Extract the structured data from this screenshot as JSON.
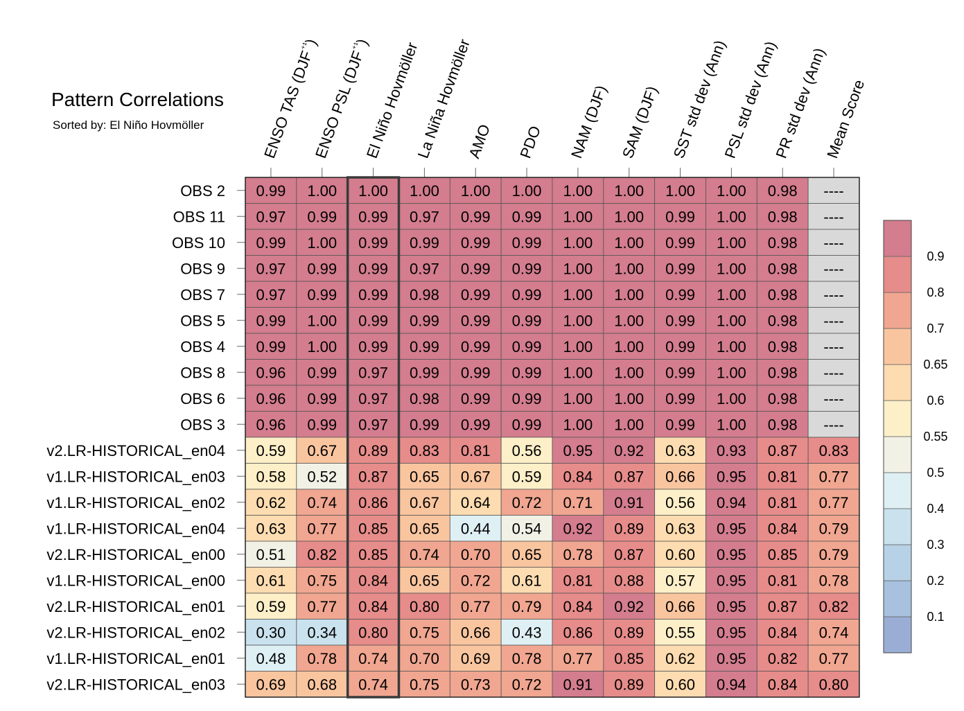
{
  "chart_data": {
    "type": "heatmap",
    "title": "Pattern Correlations",
    "subtitle": "Sorted by: El Niño Hovmöller",
    "highlighted_column": "El Niño Hovmöller",
    "columns": [
      "ENSO TAS (DJF⁺¹)",
      "ENSO PSL (DJF⁺¹)",
      "El Niño Hovmöller",
      "La Niña Hovmöller",
      "AMO",
      "PDO",
      "NAM (DJF)",
      "SAM (DJF)",
      "SST std dev (Ann)",
      "PSL std dev (Ann)",
      "PR std dev (Ann)",
      "Mean Score"
    ],
    "rows": [
      "OBS 2",
      "OBS 11",
      "OBS 10",
      "OBS 9",
      "OBS 7",
      "OBS 5",
      "OBS 4",
      "OBS 8",
      "OBS 6",
      "OBS 3",
      "v2.LR-HISTORICAL_en04",
      "v1.LR-HISTORICAL_en03",
      "v1.LR-HISTORICAL_en02",
      "v1.LR-HISTORICAL_en04",
      "v2.LR-HISTORICAL_en00",
      "v1.LR-HISTORICAL_en00",
      "v2.LR-HISTORICAL_en01",
      "v2.LR-HISTORICAL_en02",
      "v1.LR-HISTORICAL_en01",
      "v2.LR-HISTORICAL_en03"
    ],
    "values": [
      [
        "0.99",
        "1.00",
        "1.00",
        "1.00",
        "1.00",
        "1.00",
        "1.00",
        "1.00",
        "1.00",
        "1.00",
        "0.98",
        "----"
      ],
      [
        "0.97",
        "0.99",
        "0.99",
        "0.97",
        "0.99",
        "0.99",
        "1.00",
        "1.00",
        "0.99",
        "1.00",
        "0.98",
        "----"
      ],
      [
        "0.99",
        "1.00",
        "0.99",
        "0.99",
        "0.99",
        "0.99",
        "1.00",
        "1.00",
        "0.99",
        "1.00",
        "0.98",
        "----"
      ],
      [
        "0.97",
        "0.99",
        "0.99",
        "0.97",
        "0.99",
        "0.99",
        "1.00",
        "1.00",
        "0.99",
        "1.00",
        "0.98",
        "----"
      ],
      [
        "0.97",
        "0.99",
        "0.99",
        "0.98",
        "0.99",
        "0.99",
        "1.00",
        "1.00",
        "0.99",
        "1.00",
        "0.98",
        "----"
      ],
      [
        "0.99",
        "1.00",
        "0.99",
        "0.99",
        "0.99",
        "0.99",
        "1.00",
        "1.00",
        "0.99",
        "1.00",
        "0.98",
        "----"
      ],
      [
        "0.99",
        "1.00",
        "0.99",
        "0.99",
        "0.99",
        "0.99",
        "1.00",
        "1.00",
        "0.99",
        "1.00",
        "0.98",
        "----"
      ],
      [
        "0.96",
        "0.99",
        "0.97",
        "0.99",
        "0.99",
        "0.99",
        "1.00",
        "1.00",
        "0.99",
        "1.00",
        "0.98",
        "----"
      ],
      [
        "0.96",
        "0.99",
        "0.97",
        "0.98",
        "0.99",
        "0.99",
        "1.00",
        "1.00",
        "0.99",
        "1.00",
        "0.98",
        "----"
      ],
      [
        "0.96",
        "0.99",
        "0.97",
        "0.99",
        "0.99",
        "0.99",
        "1.00",
        "1.00",
        "0.99",
        "1.00",
        "0.98",
        "----"
      ],
      [
        "0.59",
        "0.67",
        "0.89",
        "0.83",
        "0.81",
        "0.56",
        "0.95",
        "0.92",
        "0.63",
        "0.93",
        "0.87",
        "0.83"
      ],
      [
        "0.58",
        "0.52",
        "0.87",
        "0.65",
        "0.67",
        "0.59",
        "0.84",
        "0.87",
        "0.66",
        "0.95",
        "0.81",
        "0.77"
      ],
      [
        "0.62",
        "0.74",
        "0.86",
        "0.67",
        "0.64",
        "0.72",
        "0.71",
        "0.91",
        "0.56",
        "0.94",
        "0.81",
        "0.77"
      ],
      [
        "0.63",
        "0.77",
        "0.85",
        "0.65",
        "0.44",
        "0.54",
        "0.92",
        "0.89",
        "0.63",
        "0.95",
        "0.84",
        "0.79"
      ],
      [
        "0.51",
        "0.82",
        "0.85",
        "0.74",
        "0.70",
        "0.65",
        "0.78",
        "0.87",
        "0.60",
        "0.95",
        "0.85",
        "0.79"
      ],
      [
        "0.61",
        "0.75",
        "0.84",
        "0.65",
        "0.72",
        "0.61",
        "0.81",
        "0.88",
        "0.57",
        "0.95",
        "0.81",
        "0.78"
      ],
      [
        "0.59",
        "0.77",
        "0.84",
        "0.80",
        "0.77",
        "0.79",
        "0.84",
        "0.92",
        "0.66",
        "0.95",
        "0.87",
        "0.82"
      ],
      [
        "0.30",
        "0.34",
        "0.80",
        "0.75",
        "0.66",
        "0.43",
        "0.86",
        "0.89",
        "0.55",
        "0.95",
        "0.84",
        "0.74"
      ],
      [
        "0.48",
        "0.78",
        "0.74",
        "0.70",
        "0.69",
        "0.78",
        "0.77",
        "0.85",
        "0.62",
        "0.95",
        "0.82",
        "0.77"
      ],
      [
        "0.69",
        "0.68",
        "0.74",
        "0.75",
        "0.73",
        "0.72",
        "0.91",
        "0.89",
        "0.60",
        "0.94",
        "0.84",
        "0.80"
      ]
    ],
    "colorbar": {
      "levels": [
        "0.1",
        "0.2",
        "0.3",
        "0.4",
        "0.5",
        "0.55",
        "0.6",
        "0.65",
        "0.7",
        "0.8",
        "0.9"
      ],
      "colors": [
        "#9aaed5",
        "#a7c1df",
        "#b7d2e6",
        "#c9e2ee",
        "#dff0f5",
        "#f2f1e6",
        "#fdefc8",
        "#fcdcb0",
        "#f9c59f",
        "#f0a690",
        "#e68c8a",
        "#d37d8e"
      ],
      "missing_color": "#d9d9d9"
    }
  }
}
